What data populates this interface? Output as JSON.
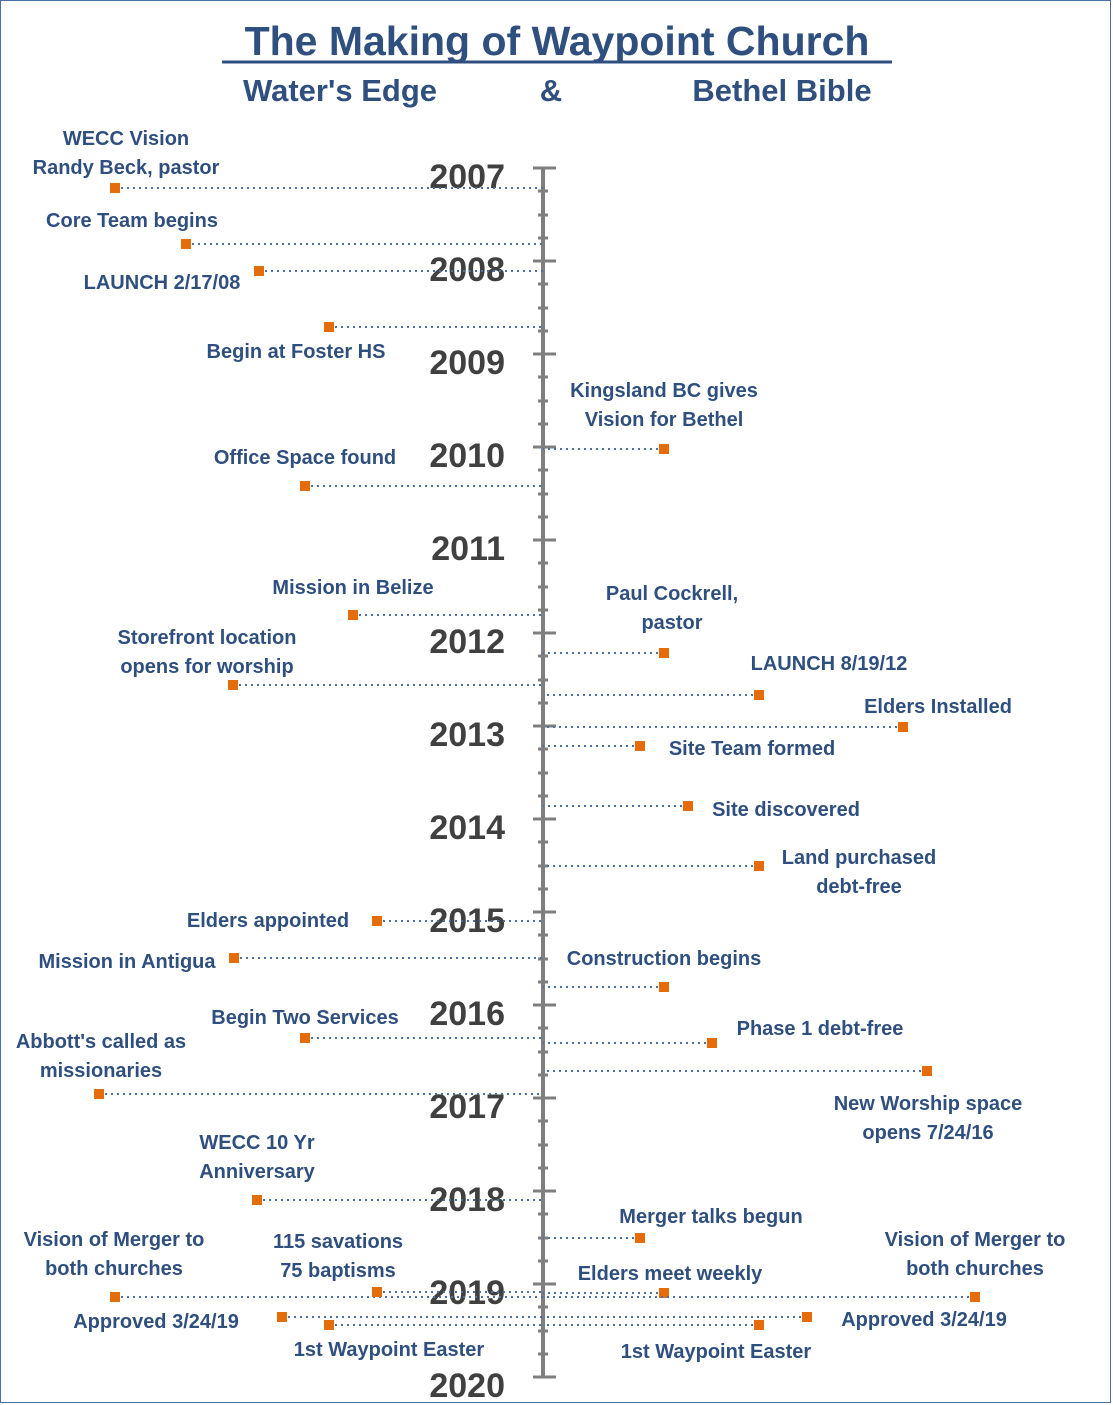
{
  "title": "The Making of Waypoint Church",
  "left_heading": "Water's Edge",
  "amp": "&",
  "right_heading": "Bethel Bible",
  "years": [
    "2007",
    "2008",
    "2009",
    "2010",
    "2011",
    "2012",
    "2013",
    "2014",
    "2015",
    "2016",
    "2017",
    "2018",
    "2019",
    "2020"
  ],
  "left_events": [
    {
      "lines": [
        "WECC Vision",
        "Randy Beck, pastor"
      ]
    },
    {
      "lines": [
        "Core Team begins"
      ]
    },
    {
      "lines": [
        "LAUNCH 2/17/08"
      ]
    },
    {
      "lines": [
        "Begin at Foster HS"
      ]
    },
    {
      "lines": [
        "Office Space found"
      ]
    },
    {
      "lines": [
        "Mission in Belize"
      ]
    },
    {
      "lines": [
        "Storefront location",
        "opens for worship"
      ]
    },
    {
      "lines": [
        "Elders appointed"
      ]
    },
    {
      "lines": [
        "Mission in Antigua"
      ]
    },
    {
      "lines": [
        "Begin Two Services"
      ]
    },
    {
      "lines": [
        "Abbott's called as",
        "missionaries"
      ]
    },
    {
      "lines": [
        "WECC 10 Yr",
        "Anniversary"
      ]
    },
    {
      "lines": [
        "Vision of Merger to",
        "both churches"
      ]
    },
    {
      "lines": [
        "115 savations",
        "75 baptisms"
      ]
    },
    {
      "lines": [
        "Approved 3/24/19"
      ]
    },
    {
      "lines": [
        "1st Waypoint Easter"
      ]
    }
  ],
  "right_events": [
    {
      "lines": [
        "Kingsland BC gives",
        "Vision for Bethel"
      ]
    },
    {
      "lines": [
        "Paul Cockrell,",
        "pastor"
      ]
    },
    {
      "lines": [
        "LAUNCH 8/19/12"
      ]
    },
    {
      "lines": [
        "Elders Installed"
      ]
    },
    {
      "lines": [
        "Site Team formed"
      ]
    },
    {
      "lines": [
        "Site discovered"
      ]
    },
    {
      "lines": [
        "Land purchased",
        "debt-free"
      ]
    },
    {
      "lines": [
        "Construction begins"
      ]
    },
    {
      "lines": [
        "Phase 1 debt-free"
      ]
    },
    {
      "lines": [
        "New Worship space",
        "opens 7/24/16"
      ]
    },
    {
      "lines": [
        "Merger talks begun"
      ]
    },
    {
      "lines": [
        "Elders meet weekly"
      ]
    },
    {
      "lines": [
        "Vision of Merger to",
        "both churches"
      ]
    },
    {
      "lines": [
        "Approved 3/24/19"
      ]
    },
    {
      "lines": [
        "1st Waypoint Easter"
      ]
    }
  ]
}
